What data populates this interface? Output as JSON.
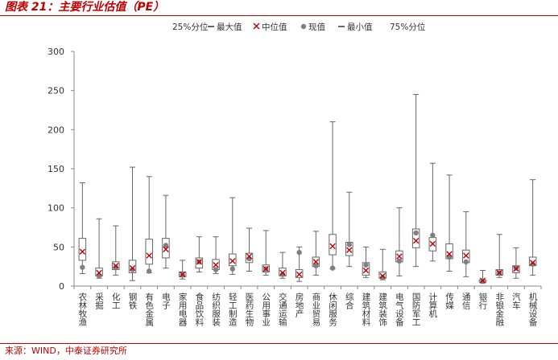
{
  "header": {
    "title": "图表 21：主要行业估值（PE）"
  },
  "footer": {
    "source": "来源：WIND，中泰证券研究所"
  },
  "chart_data": {
    "type": "box",
    "ylim": [
      0,
      300
    ],
    "yticks": [
      0,
      50,
      100,
      150,
      200,
      250,
      300
    ],
    "grid": false,
    "legend_position": "top",
    "legend": [
      {
        "key": "q25",
        "label": "25%分位"
      },
      {
        "key": "max",
        "label": "最大值"
      },
      {
        "key": "median",
        "label": "中位值"
      },
      {
        "key": "current",
        "label": "现值"
      },
      {
        "key": "min",
        "label": "最小值"
      },
      {
        "key": "q75",
        "label": "75%分位"
      }
    ],
    "colors": {
      "box": "#666666",
      "whisker": "#666666",
      "median": "#c00000",
      "current": "#808080",
      "axis": "#888888"
    },
    "categories": [
      "农林牧渔",
      "采掘",
      "化工",
      "钢铁",
      "有色金属",
      "电子",
      "家用电器",
      "食品饮料",
      "纺织服装",
      "轻工制造",
      "医药生物",
      "公用事业",
      "交通运输",
      "房地产",
      "商业贸易",
      "休闲服务",
      "综合",
      "建筑材料",
      "建筑装饰",
      "电气设备",
      "国防军工",
      "计算机",
      "传媒",
      "通信",
      "银行",
      "非银金融",
      "汽车",
      "机械设备"
    ],
    "series": [
      {
        "key": "max",
        "values": [
          132,
          86,
          77,
          152,
          140,
          116,
          33,
          63,
          63,
          113,
          74,
          71,
          43,
          50,
          70,
          210,
          120,
          50,
          47,
          100,
          245,
          157,
          142,
          95,
          20,
          66,
          49,
          136
        ]
      },
      {
        "key": "q75",
        "values": [
          61,
          23,
          31,
          33,
          60,
          61,
          18,
          36,
          34,
          41,
          42,
          27,
          23,
          21,
          37,
          66,
          56,
          30,
          18,
          45,
          73,
          62,
          54,
          46,
          8,
          21,
          26,
          37
        ]
      },
      {
        "key": "median",
        "values": [
          44,
          17,
          26,
          23,
          39,
          47,
          15,
          31,
          27,
          32,
          38,
          22,
          17,
          15,
          31,
          51,
          46,
          20,
          13,
          38,
          58,
          54,
          41,
          39,
          7,
          17,
          22,
          30
        ]
      },
      {
        "key": "q25",
        "values": [
          33,
          13,
          21,
          17,
          28,
          36,
          12,
          23,
          21,
          26,
          30,
          18,
          13,
          11,
          25,
          40,
          39,
          14,
          10,
          31,
          49,
          45,
          35,
          30,
          5,
          14,
          17,
          26
        ]
      },
      {
        "key": "min",
        "values": [
          16,
          10,
          14,
          7,
          17,
          23,
          9,
          18,
          16,
          15,
          19,
          14,
          10,
          6,
          14,
          22,
          25,
          11,
          8,
          13,
          25,
          32,
          19,
          12,
          4,
          11,
          10,
          14
        ]
      },
      {
        "key": "current",
        "values": [
          24,
          13,
          24,
          21,
          19,
          52,
          14,
          31,
          21,
          22,
          35,
          22,
          15,
          43,
          26,
          23,
          53,
          27,
          11,
          32,
          68,
          65,
          37,
          31,
          6,
          17,
          23,
          28
        ]
      }
    ]
  }
}
